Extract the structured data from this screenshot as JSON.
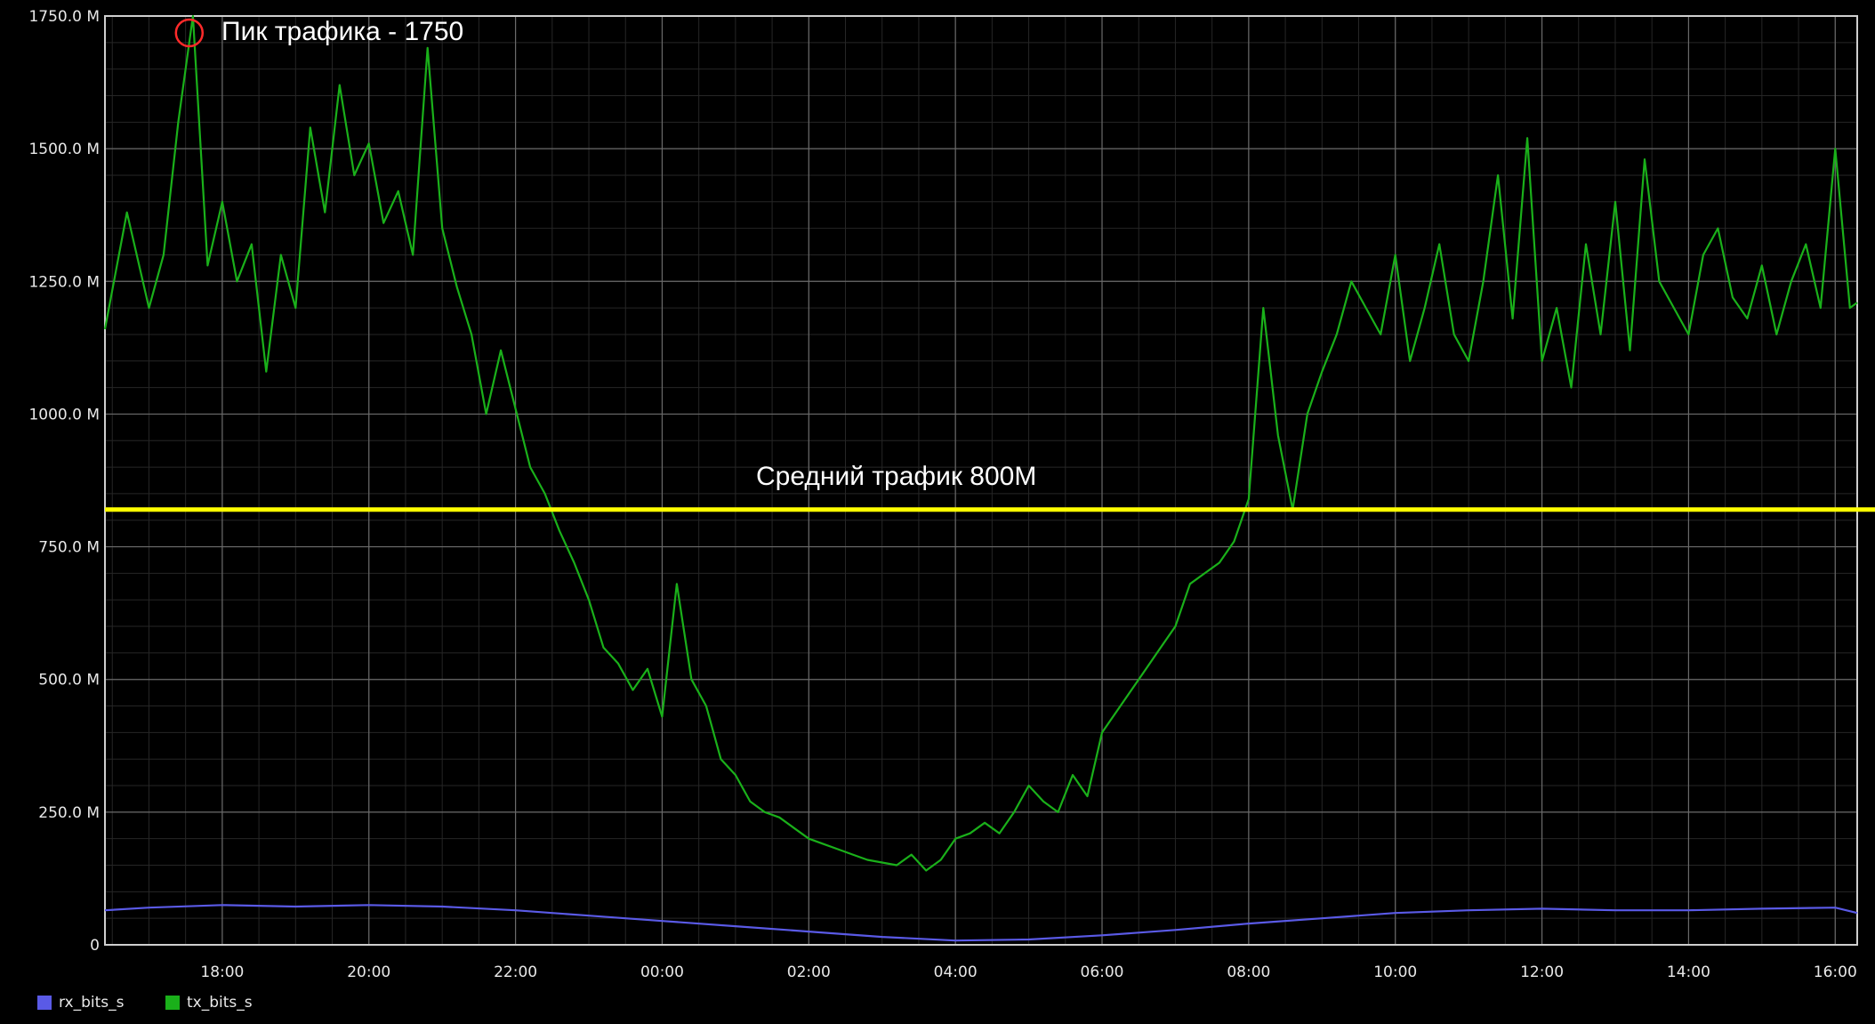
{
  "chart_data": {
    "type": "line",
    "title": "",
    "xlabel": "",
    "ylabel": "",
    "ylim": [
      0,
      1750
    ],
    "y_unit": "M",
    "y_ticks": [
      {
        "value": 0,
        "label": "0"
      },
      {
        "value": 250,
        "label": "250.0 M"
      },
      {
        "value": 500,
        "label": "500.0 M"
      },
      {
        "value": 750,
        "label": "750.0 M"
      },
      {
        "value": 1000,
        "label": "1000.0 M"
      },
      {
        "value": 1250,
        "label": "1250.0 M"
      },
      {
        "value": 1500,
        "label": "1500.0 M"
      },
      {
        "value": 1750,
        "label": "1750.0 M"
      }
    ],
    "x_hours_range": [
      -7.6,
      16.3
    ],
    "x_ticks": [
      {
        "h": -6,
        "label": "18:00"
      },
      {
        "h": -4,
        "label": "20:00"
      },
      {
        "h": -2,
        "label": "22:00"
      },
      {
        "h": 0,
        "label": "00:00"
      },
      {
        "h": 2,
        "label": "02:00"
      },
      {
        "h": 4,
        "label": "04:00"
      },
      {
        "h": 6,
        "label": "06:00"
      },
      {
        "h": 8,
        "label": "08:00"
      },
      {
        "h": 10,
        "label": "10:00"
      },
      {
        "h": 12,
        "label": "12:00"
      },
      {
        "h": 14,
        "label": "14:00"
      },
      {
        "h": 16,
        "label": "16:00"
      }
    ],
    "grid": true,
    "legend_position": "bottom-left",
    "series": [
      {
        "name": "rx_bits_s",
        "color": "#5a5ae6",
        "x_hours": [
          -7.6,
          -7,
          -6,
          -5,
          -4,
          -3,
          -2,
          -1,
          0,
          1,
          2,
          3,
          4,
          5,
          6,
          7,
          8,
          9,
          10,
          11,
          12,
          13,
          14,
          15,
          16,
          16.3
        ],
        "values": [
          65,
          70,
          75,
          72,
          75,
          72,
          65,
          55,
          45,
          35,
          25,
          15,
          8,
          10,
          18,
          28,
          40,
          50,
          60,
          65,
          68,
          65,
          65,
          68,
          70,
          60
        ]
      },
      {
        "name": "tx_bits_s",
        "color": "#1ab01a",
        "x_hours": [
          -7.6,
          -7.3,
          -7,
          -6.8,
          -6.6,
          -6.4,
          -6.2,
          -6,
          -5.8,
          -5.6,
          -5.4,
          -5.2,
          -5,
          -4.8,
          -4.6,
          -4.4,
          -4.2,
          -4,
          -3.8,
          -3.6,
          -3.4,
          -3.2,
          -3,
          -2.8,
          -2.6,
          -2.4,
          -2.2,
          -2,
          -1.8,
          -1.6,
          -1.4,
          -1.2,
          -1,
          -0.8,
          -0.6,
          -0.4,
          -0.2,
          0,
          0.2,
          0.4,
          0.6,
          0.8,
          1,
          1.2,
          1.4,
          1.6,
          1.8,
          2,
          2.2,
          2.4,
          2.6,
          2.8,
          3,
          3.2,
          3.4,
          3.6,
          3.8,
          4,
          4.2,
          4.4,
          4.6,
          4.8,
          5,
          5.2,
          5.4,
          5.6,
          5.8,
          6,
          6.2,
          6.4,
          6.6,
          6.8,
          7,
          7.2,
          7.4,
          7.6,
          7.8,
          8,
          8.2,
          8.4,
          8.6,
          8.8,
          9,
          9.2,
          9.4,
          9.6,
          9.8,
          10,
          10.2,
          10.4,
          10.6,
          10.8,
          11,
          11.2,
          11.4,
          11.6,
          11.8,
          12,
          12.2,
          12.4,
          12.6,
          12.8,
          13,
          13.2,
          13.4,
          13.6,
          13.8,
          14,
          14.2,
          14.4,
          14.6,
          14.8,
          15,
          15.2,
          15.4,
          15.6,
          15.8,
          16,
          16.2,
          16.3
        ],
        "values": [
          1160,
          1380,
          1200,
          1300,
          1550,
          1750,
          1280,
          1400,
          1250,
          1320,
          1080,
          1300,
          1200,
          1540,
          1380,
          1620,
          1450,
          1510,
          1360,
          1420,
          1300,
          1690,
          1350,
          1240,
          1150,
          1000,
          1120,
          1010,
          900,
          850,
          780,
          720,
          650,
          560,
          530,
          480,
          520,
          430,
          680,
          500,
          450,
          350,
          320,
          270,
          250,
          240,
          220,
          200,
          190,
          180,
          170,
          160,
          155,
          150,
          170,
          140,
          160,
          200,
          210,
          230,
          210,
          250,
          300,
          270,
          250,
          320,
          280,
          400,
          440,
          480,
          520,
          560,
          600,
          680,
          700,
          720,
          760,
          840,
          1200,
          960,
          820,
          1000,
          1080,
          1150,
          1250,
          1200,
          1150,
          1300,
          1100,
          1200,
          1320,
          1150,
          1100,
          1250,
          1450,
          1180,
          1520,
          1100,
          1200,
          1050,
          1320,
          1150,
          1400,
          1120,
          1480,
          1250,
          1200,
          1150,
          1300,
          1350,
          1220,
          1180,
          1280,
          1150,
          1250,
          1320,
          1200,
          1500,
          1200,
          1210
        ]
      }
    ],
    "annotations": [
      {
        "text": "Пик трафика - 1750",
        "x_h": -6.45,
        "y": 1735,
        "marker": "circle",
        "color": "#ff2a2a"
      },
      {
        "text": "Средний трафик 800M",
        "y": 820,
        "line_color": "#ffff00"
      }
    ]
  }
}
